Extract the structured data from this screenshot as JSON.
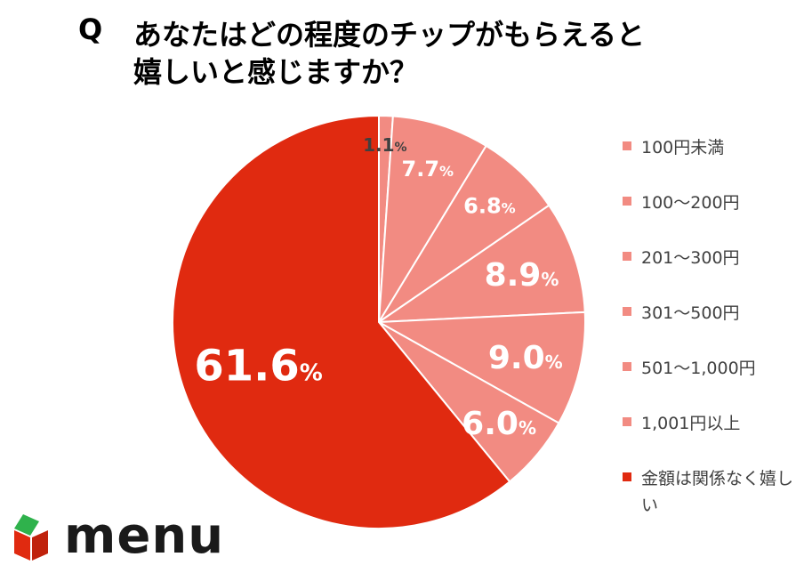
{
  "title": {
    "q": "Q",
    "line1": "あなたはどの程度のチップがもらえると",
    "line2": "嬉しいと感じますか？"
  },
  "chart_data": {
    "type": "pie",
    "title": "あなたはどの程度のチップがもらえると嬉しいと感じますか？",
    "start": "12 o'clock, clockwise",
    "legend_position": "right",
    "categories": [
      "100円未満",
      "100〜200円",
      "201〜300円",
      "301〜500円",
      "501〜1,000円",
      "1,001円以上",
      "金額は関係なく嬉しい"
    ],
    "values": [
      1.1,
      7.7,
      6.8,
      8.9,
      9.0,
      6.0,
      61.6
    ],
    "value_labels": [
      "1.1",
      "7.7",
      "6.8",
      "8.9",
      "9.0",
      "6.0",
      "61.6"
    ],
    "unit": "%",
    "colors": [
      "#f28b82",
      "#f28b82",
      "#f28b82",
      "#f28b82",
      "#f28b82",
      "#f28b82",
      "#e02a10"
    ]
  },
  "logo": {
    "text": "menu"
  }
}
